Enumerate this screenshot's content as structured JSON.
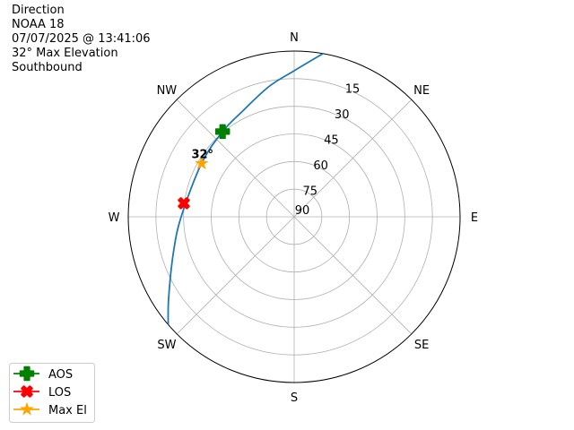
{
  "title_lines": [
    "Direction",
    "NOAA 18",
    "07/07/2025 @ 13:41:06",
    "32° Max Elevation",
    "Southbound"
  ],
  "chart_data": {
    "type": "polar-line",
    "direction_labels": [
      {
        "label": "N",
        "az": 0
      },
      {
        "label": "NE",
        "az": 45
      },
      {
        "label": "E",
        "az": 90
      },
      {
        "label": "SE",
        "az": 135
      },
      {
        "label": "S",
        "az": 180
      },
      {
        "label": "SW",
        "az": 225
      },
      {
        "label": "W",
        "az": 270
      },
      {
        "label": "NW",
        "az": 315
      }
    ],
    "radial_ticks": [
      15,
      30,
      45,
      60,
      75,
      90
    ],
    "radial_range": [
      0,
      90
    ],
    "radial_axis": "elevation (90 at center)",
    "grid": true,
    "track": {
      "color": "#1f77b4",
      "points": [
        {
          "az": 10,
          "el": 0
        },
        {
          "az": 0,
          "el": 10.7
        },
        {
          "az": 349,
          "el": 18
        },
        {
          "az": 333.6,
          "el": 26.3
        },
        {
          "az": 320,
          "el": 29.6
        },
        {
          "az": 300,
          "el": 32
        },
        {
          "az": 270,
          "el": 28.7
        },
        {
          "az": 253,
          "el": 21.4
        },
        {
          "az": 237,
          "el": 8.8
        },
        {
          "az": 229.4,
          "el": 0
        }
      ]
    },
    "markers": [
      {
        "name": "AOS",
        "az": 320,
        "el": 29.6,
        "color": "#008000",
        "shape": "plus"
      },
      {
        "name": "LOS",
        "az": 277,
        "el": 29.7,
        "color": "#ff0000",
        "shape": "x"
      },
      {
        "name": "Max El",
        "az": 300,
        "el": 32,
        "color": "#ffa500",
        "shape": "star"
      }
    ],
    "annotation": "32°",
    "legend_position": "lower-left"
  }
}
